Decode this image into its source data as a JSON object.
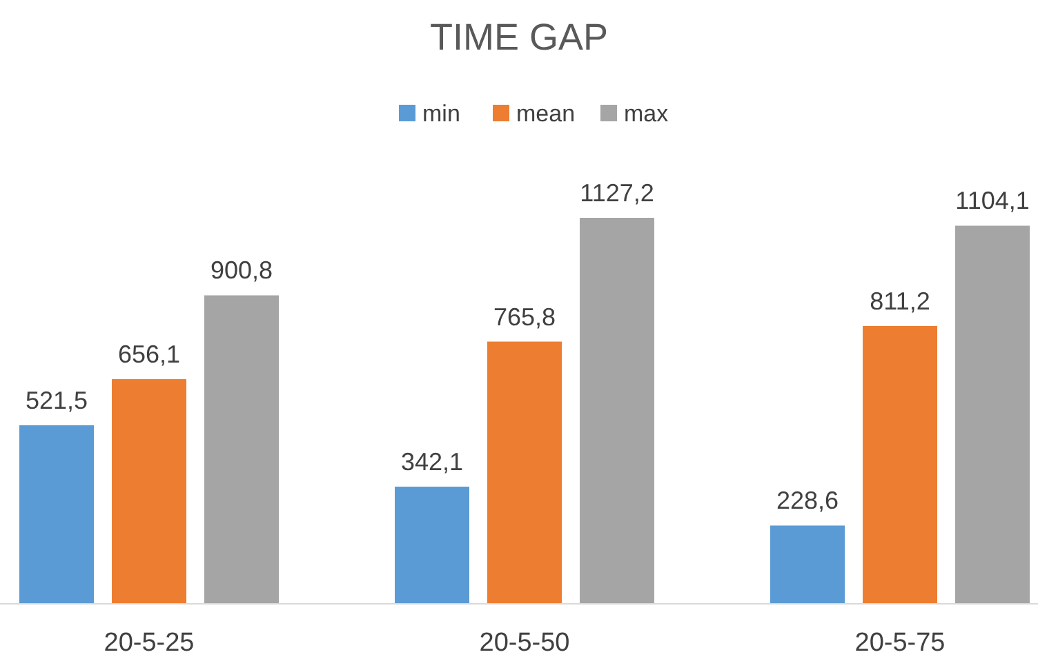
{
  "chart_data": {
    "type": "bar",
    "title": "TIME GAP",
    "categories": [
      "20-5-25",
      "20-5-50",
      "20-5-75"
    ],
    "series": [
      {
        "name": "min",
        "color": "#5b9bd5",
        "values": [
          521.5,
          342.1,
          228.6
        ],
        "value_labels": [
          "521,5",
          "342,1",
          "228,6"
        ]
      },
      {
        "name": "mean",
        "color": "#ed7d31",
        "values": [
          656.1,
          765.8,
          811.2
        ],
        "value_labels": [
          "656,1",
          "765,8",
          "811,2"
        ]
      },
      {
        "name": "max",
        "color": "#a5a5a5",
        "values": [
          900.8,
          1127.2,
          1104.1
        ],
        "value_labels": [
          "900,8",
          "1127,2",
          "1104,1"
        ]
      }
    ],
    "legend": "top"
  }
}
